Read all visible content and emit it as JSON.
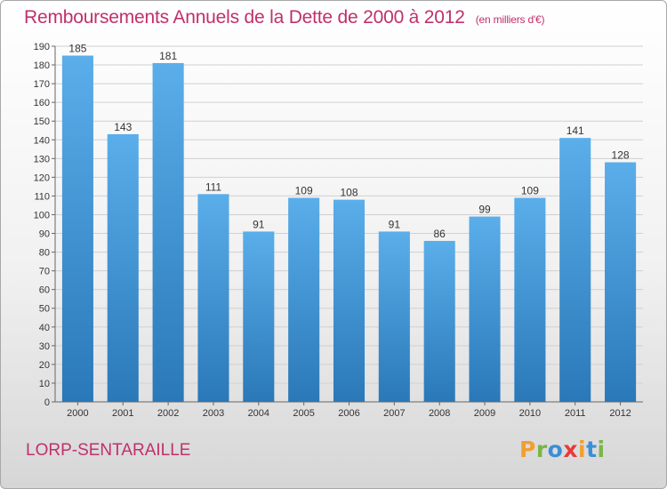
{
  "header": {
    "title": "Remboursements Annuels de la Dette de 2000 à 2012",
    "unit_note": "(en milliers d'€)"
  },
  "footer": {
    "commune": "LORP-SENTARAILLE",
    "logo_letters": [
      {
        "char": "P",
        "color": "#f0a030"
      },
      {
        "char": "r",
        "color": "#7ab648"
      },
      {
        "char": "o",
        "color": "#3a8fd6"
      },
      {
        "char": "x",
        "color": "#e63a3a"
      },
      {
        "char": "i",
        "color": "#f0a030"
      },
      {
        "char": "t",
        "color": "#3a8fd6"
      },
      {
        "char": "i",
        "color": "#7ab648"
      }
    ]
  },
  "colors": {
    "accent": "#c0306c",
    "bar_top": "#5aaeea",
    "bar_bottom": "#2a78b8",
    "grid": "#d0d0d0",
    "axis": "#666666"
  },
  "chart_data": {
    "type": "bar",
    "title": "Remboursements Annuels de la Dette de 2000 à 2012",
    "subtitle": "(en milliers d'€)",
    "categories": [
      "2000",
      "2001",
      "2002",
      "2003",
      "2004",
      "2005",
      "2006",
      "2007",
      "2008",
      "2009",
      "2010",
      "2011",
      "2012"
    ],
    "values": [
      185,
      143,
      181,
      111,
      91,
      109,
      108,
      91,
      86,
      99,
      109,
      141,
      128
    ],
    "ylim": [
      0,
      190
    ],
    "ytick_step": 10,
    "grid": true,
    "data_labels": true
  }
}
